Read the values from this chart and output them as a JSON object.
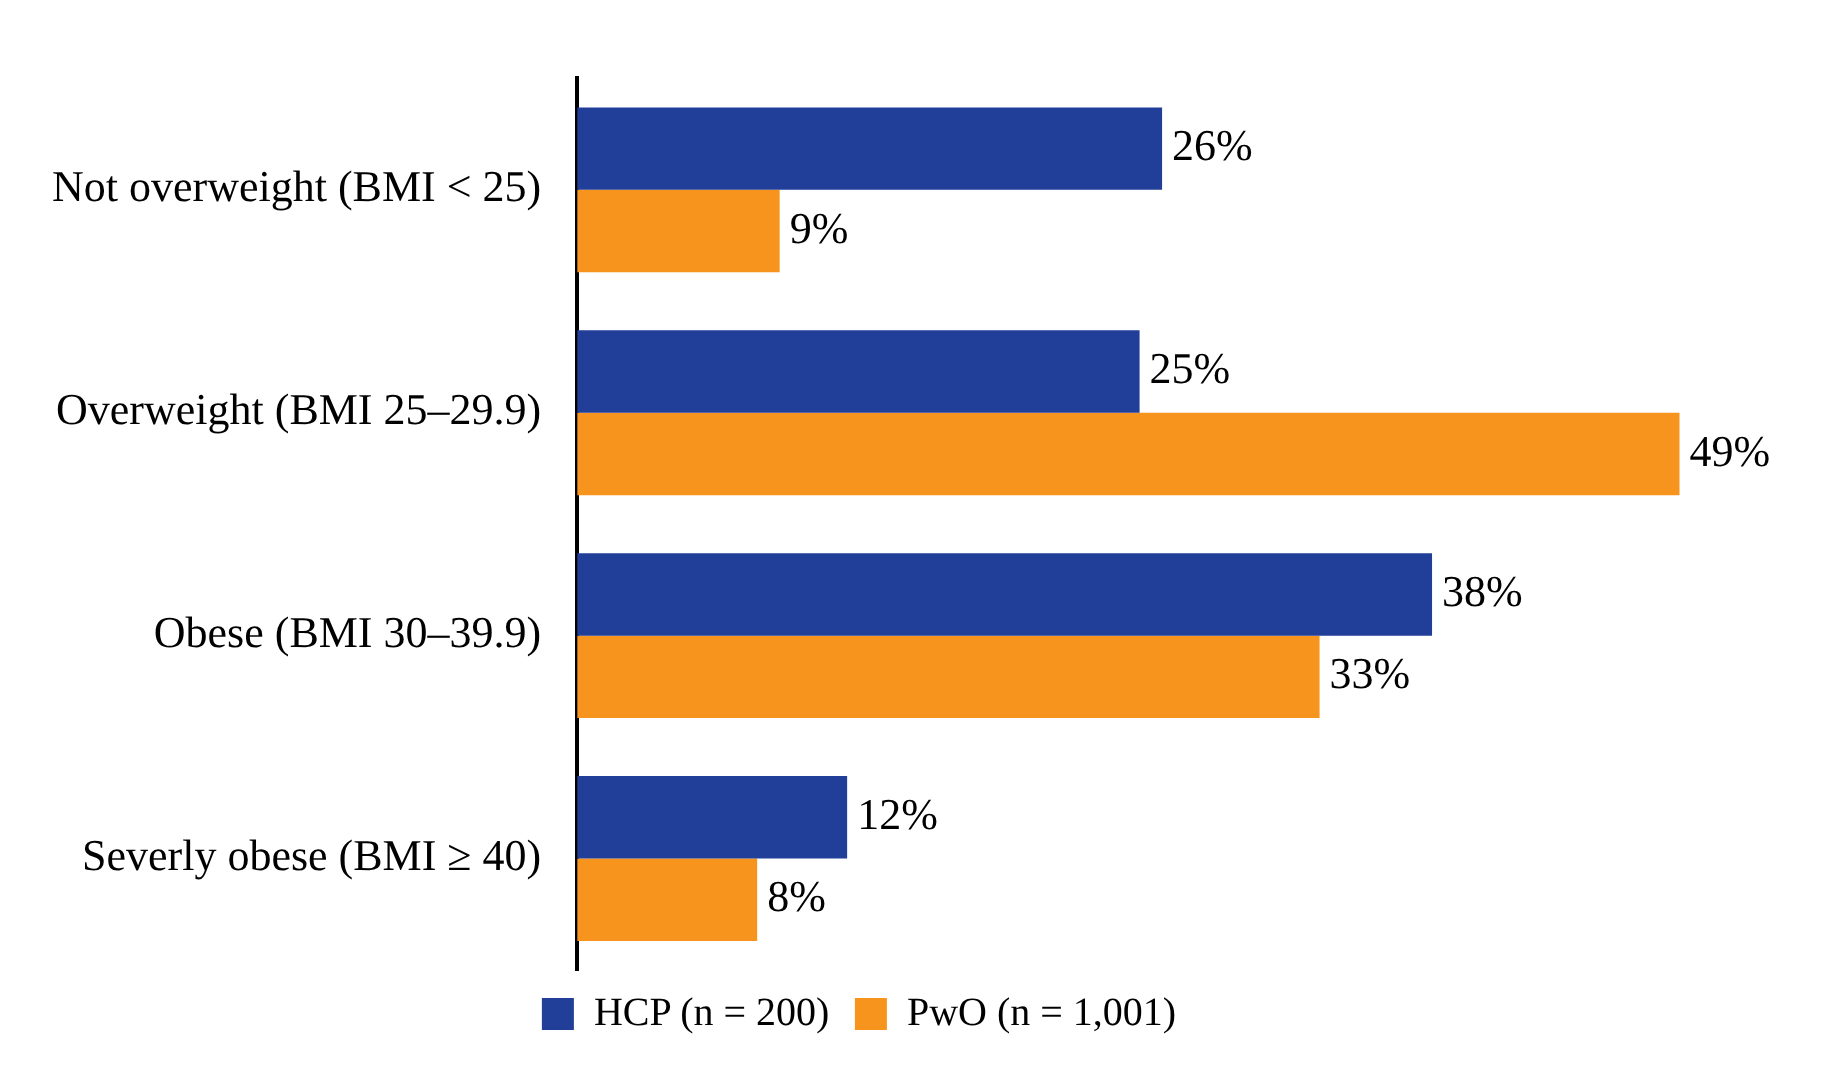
{
  "chart_data": {
    "type": "bar",
    "orientation": "horizontal",
    "categories": [
      "Not overweight (BMI < 25)",
      "Overweight (BMI 25–29.9)",
      "Obese (BMI 30–39.9)",
      "Severly obese (BMI ≥ 40)"
    ],
    "series": [
      {
        "name": "HCP (n = 200)",
        "color": "#213f99",
        "values": [
          26,
          25,
          38,
          12
        ],
        "value_labels": [
          "26%",
          "25%",
          "38%",
          "12%"
        ]
      },
      {
        "name": "PwO (n = 1,001)",
        "color": "#f7941d",
        "values": [
          9,
          49,
          33,
          8
        ],
        "value_labels": [
          "9%",
          "49%",
          "33%",
          "8%"
        ]
      }
    ],
    "legend": "bottom",
    "grid": false,
    "tick_labels": "y"
  }
}
